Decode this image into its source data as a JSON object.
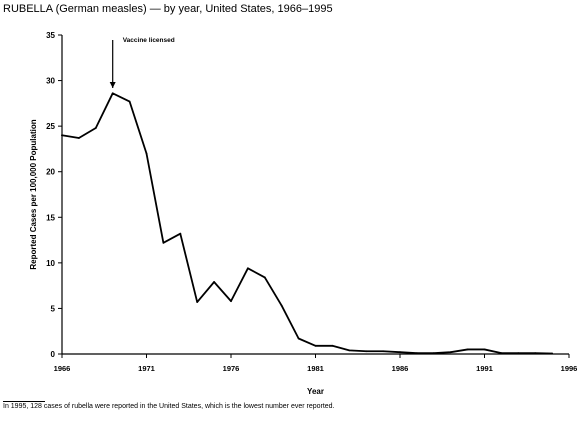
{
  "title": "RUBELLA (German measles) — by year, United States, 1966–1995",
  "footnote": "In 1995, 128 cases of rubella were reported in the United States, which is the lowest number ever reported.",
  "chart_data": {
    "type": "line",
    "title": "RUBELLA (German measles) — by year, United States, 1966–1995",
    "xlabel": "Year",
    "ylabel": "Reported Cases per 100,000 Population",
    "xlim": [
      1966,
      1996
    ],
    "ylim": [
      0,
      35
    ],
    "x_ticks": [
      1966,
      1971,
      1976,
      1981,
      1986,
      1991,
      1996
    ],
    "x_tick_labels": [
      "1966",
      "1971",
      "1976",
      "1981",
      "1986",
      "1991",
      "1996"
    ],
    "y_ticks": [
      0,
      5,
      10,
      15,
      20,
      25,
      30,
      35
    ],
    "y_tick_labels": [
      "0",
      "5",
      "10",
      "15",
      "20",
      "25",
      "30",
      "35"
    ],
    "grid": false,
    "series": [
      {
        "x": [
          1966,
          1967,
          1968,
          1969,
          1970,
          1971,
          1972,
          1973,
          1974,
          1975,
          1976,
          1977,
          1978,
          1979,
          1980,
          1981,
          1982,
          1983,
          1984,
          1985,
          1986,
          1987,
          1988,
          1989,
          1990,
          1991,
          1992,
          1993,
          1994,
          1995
        ],
        "values": [
          24.0,
          23.7,
          24.8,
          28.6,
          27.7,
          22.0,
          12.2,
          13.2,
          5.7,
          7.9,
          5.8,
          9.4,
          8.4,
          5.3,
          1.7,
          0.9,
          0.9,
          0.4,
          0.3,
          0.3,
          0.2,
          0.1,
          0.1,
          0.2,
          0.5,
          0.5,
          0.1,
          0.1,
          0.1,
          0.05
        ]
      }
    ],
    "annotations": [
      {
        "text": "Vaccine licensed",
        "x": 1969
      }
    ]
  }
}
